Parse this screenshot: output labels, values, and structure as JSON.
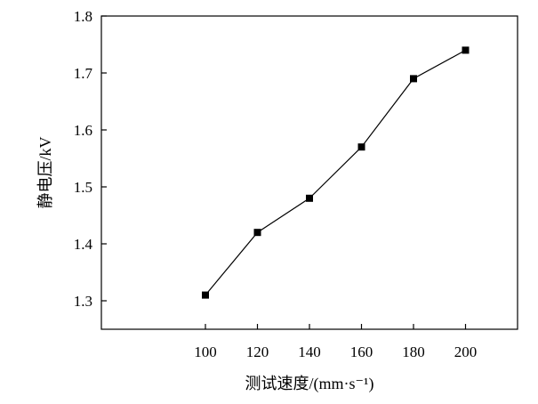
{
  "chart_data": {
    "type": "line",
    "x": [
      100,
      120,
      140,
      160,
      180,
      200
    ],
    "series": [
      {
        "values": [
          1.31,
          1.42,
          1.48,
          1.57,
          1.69,
          1.74
        ]
      }
    ],
    "xlabel": "测试速度/(mm·s⁻¹)",
    "ylabel": "静电压/kV",
    "xlim": [
      60,
      220
    ],
    "ylim": [
      1.25,
      1.8
    ],
    "xticks": [
      "100",
      "120",
      "140",
      "160",
      "180",
      "200"
    ],
    "yticks": [
      "1.3",
      "1.4",
      "1.5",
      "1.6",
      "1.7",
      "1.8"
    ],
    "marker": "square",
    "grid": false,
    "line_color": "#000000",
    "marker_color": "#000000"
  }
}
